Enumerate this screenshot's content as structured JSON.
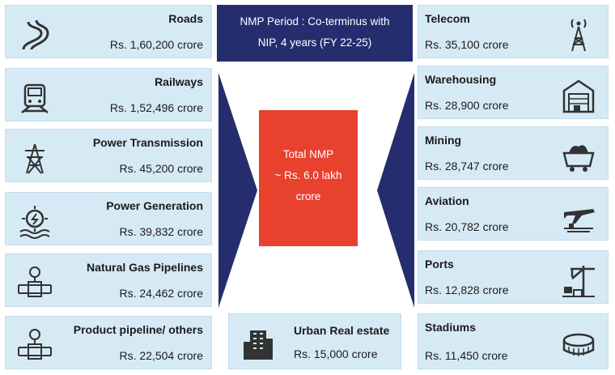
{
  "banner": {
    "line1": "NMP Period : Co-terminus with",
    "line2": "NIP,  4 years (FY 22-25)"
  },
  "center": {
    "line1": "Total NMP",
    "line2": "~ Rs. 6.0  lakh",
    "line3": "crore"
  },
  "colors": {
    "card_bg": "#d6eaf6",
    "banner_bg": "#242d6e",
    "center_bg": "#e8412e",
    "arrow": "#242d6e"
  },
  "left": [
    {
      "label": "Roads",
      "value": "Rs. 1,60,200 crore",
      "icon": "road-icon"
    },
    {
      "label": "Railways",
      "value": "Rs. 1,52,496 crore",
      "icon": "train-icon"
    },
    {
      "label": "Power Transmission",
      "value": "Rs. 45,200 crore",
      "icon": "transmission-tower-icon"
    },
    {
      "label": "Power Generation",
      "value": "Rs. 39,832 crore",
      "icon": "power-plant-icon"
    },
    {
      "label": "Natural Gas Pipelines",
      "value": "Rs. 24,462 crore",
      "icon": "gas-pipeline-icon"
    },
    {
      "label": "Product pipeline/ others",
      "value": "Rs. 22,504 crore",
      "icon": "product-pipeline-icon"
    }
  ],
  "right": [
    {
      "label": "Telecom",
      "value": "Rs. 35,100 crore",
      "icon": "telecom-tower-icon"
    },
    {
      "label": "Warehousing",
      "value": "Rs. 28,900 crore",
      "icon": "warehouse-icon"
    },
    {
      "label": "Mining",
      "value": "Rs. 28,747 crore",
      "icon": "mining-cart-icon"
    },
    {
      "label": "Aviation",
      "value": "Rs. 20,782 crore",
      "icon": "airplane-icon"
    },
    {
      "label": "Ports",
      "value": "Rs. 12,828 crore",
      "icon": "port-crane-icon"
    },
    {
      "label": "Stadiums",
      "value": "Rs. 11,450 crore",
      "icon": "stadium-icon"
    }
  ],
  "bottom": {
    "label": "Urban Real estate",
    "value": "Rs. 15,000 crore",
    "icon": "building-icon"
  }
}
